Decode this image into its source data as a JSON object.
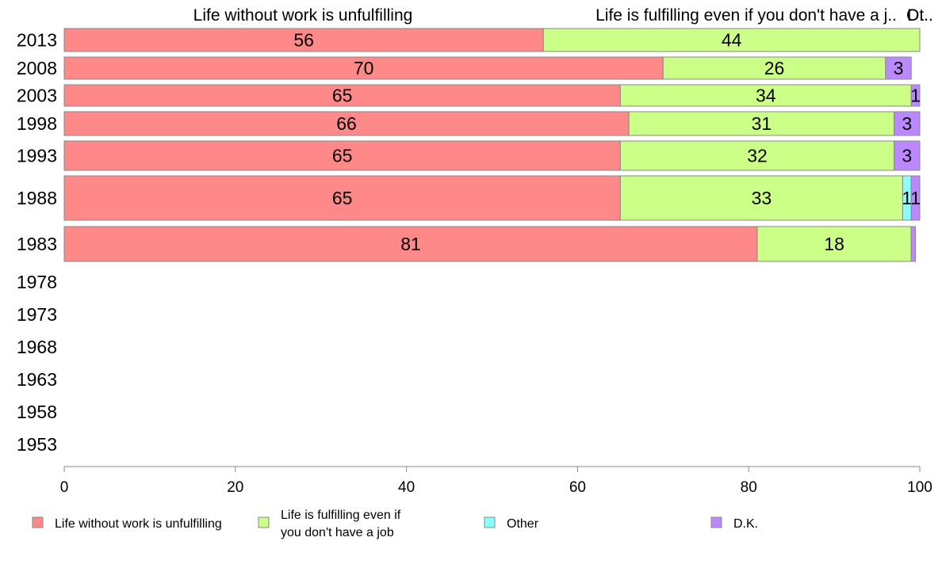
{
  "chart_data": {
    "type": "bar",
    "orientation": "horizontal",
    "stacked": true,
    "categories": [
      "2013",
      "2008",
      "2003",
      "1998",
      "1993",
      "1988",
      "1983",
      "1978",
      "1973",
      "1968",
      "1963",
      "1958",
      "1953"
    ],
    "series": [
      {
        "name": "Life without work is unfulfilling",
        "color": "#ff8888",
        "values": [
          56,
          70,
          65,
          66,
          65,
          65,
          81,
          null,
          null,
          null,
          null,
          null,
          null
        ],
        "labels": [
          "56",
          "70",
          "65",
          "66",
          "65",
          "65",
          "81",
          "",
          "",
          "",
          "",
          "",
          ""
        ]
      },
      {
        "name": "Life is fulfilling even if you don't have a job",
        "color": "#ccff88",
        "values": [
          44,
          26,
          34,
          31,
          32,
          33,
          18,
          null,
          null,
          null,
          null,
          null,
          null
        ],
        "labels": [
          "44",
          "26",
          "34",
          "31",
          "32",
          "33",
          "18",
          "",
          "",
          "",
          "",
          "",
          ""
        ]
      },
      {
        "name": "Other",
        "color": "#88ffff",
        "values": [
          0,
          0,
          0,
          0,
          0,
          1,
          0,
          null,
          null,
          null,
          null,
          null,
          null
        ],
        "labels": [
          "",
          "",
          "",
          "",
          "",
          "1",
          "",
          "",
          "",
          "",
          "",
          "",
          ""
        ]
      },
      {
        "name": "D.K.",
        "color": "#bb88ff",
        "values": [
          0,
          3,
          1,
          3,
          3,
          1,
          0.5,
          null,
          null,
          null,
          null,
          null,
          null
        ],
        "labels": [
          "",
          "3",
          "1",
          "3",
          "3",
          "1",
          "",
          "",
          "",
          "",
          "",
          "",
          ""
        ]
      }
    ],
    "column_headers": [
      "Life without work is unfulfilling",
      "Life is fulfilling even if you don't have a j..",
      "Ot..",
      "D.."
    ],
    "xlim": [
      0,
      100
    ],
    "xticks": [
      "0",
      "20",
      "40",
      "60",
      "80",
      "100"
    ],
    "legend_entries": [
      "Life without work is unfulfilling",
      "Life is fulfilling even if you don't have a job",
      "Other",
      "D.K."
    ],
    "legend_position": "bottom",
    "grid": false
  }
}
